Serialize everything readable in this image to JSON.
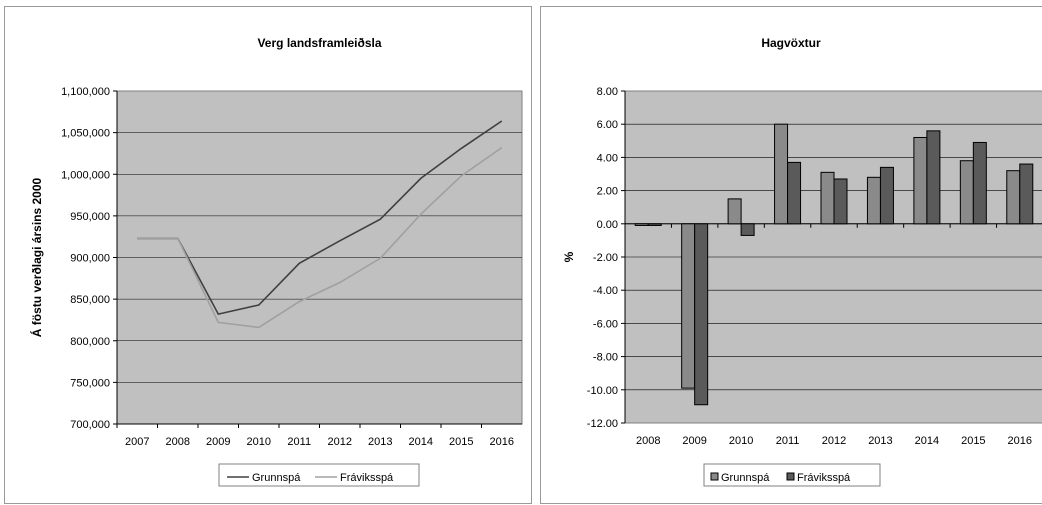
{
  "chart_data": [
    {
      "type": "line",
      "title": "Verg landsframleiðsla",
      "ylabel": "Á föstu verðlagi ársins 2000",
      "xlabel": "",
      "x": [
        "2007",
        "2008",
        "2009",
        "2010",
        "2011",
        "2012",
        "2013",
        "2014",
        "2015",
        "2016"
      ],
      "ylim": [
        700000,
        1100000
      ],
      "yticks": [
        "700,000",
        "750,000",
        "800,000",
        "850,000",
        "900,000",
        "950,000",
        "1,000,000",
        "1,050,000",
        "1,100,000"
      ],
      "grid": true,
      "legend": "bottom",
      "series": [
        {
          "name": "Grunnspá",
          "color": "#404040",
          "values": [
            923000,
            923000,
            832000,
            843000,
            893000,
            920000,
            946000,
            995000,
            1031000,
            1064000
          ]
        },
        {
          "name": "Fráviksspá",
          "color": "#a0a0a0",
          "values": [
            923000,
            923000,
            822000,
            816000,
            847000,
            870000,
            899000,
            952000,
            998000,
            1032000
          ]
        }
      ]
    },
    {
      "type": "bar",
      "title": "Hagvöxtur",
      "ylabel": "%",
      "xlabel": "",
      "categories": [
        "2008",
        "2009",
        "2010",
        "2011",
        "2012",
        "2013",
        "2014",
        "2015",
        "2016"
      ],
      "ylim": [
        -12,
        8
      ],
      "yticks": [
        "8.00",
        "6.00",
        "4.00",
        "2.00",
        "0.00",
        "-2.00",
        "-4.00",
        "-6.00",
        "-8.00",
        "-10.00",
        "-12.00"
      ],
      "grid": true,
      "legend": "bottom",
      "series": [
        {
          "name": "Grunnspá",
          "color": "#8a8a8a",
          "values": [
            -0.1,
            -9.9,
            1.5,
            6.0,
            3.1,
            2.8,
            5.2,
            3.8,
            3.2
          ]
        },
        {
          "name": "Fráviksspá",
          "color": "#5a5a5a",
          "values": [
            -0.1,
            -10.9,
            -0.7,
            3.7,
            2.7,
            3.4,
            5.6,
            4.9,
            3.6
          ]
        }
      ]
    }
  ]
}
